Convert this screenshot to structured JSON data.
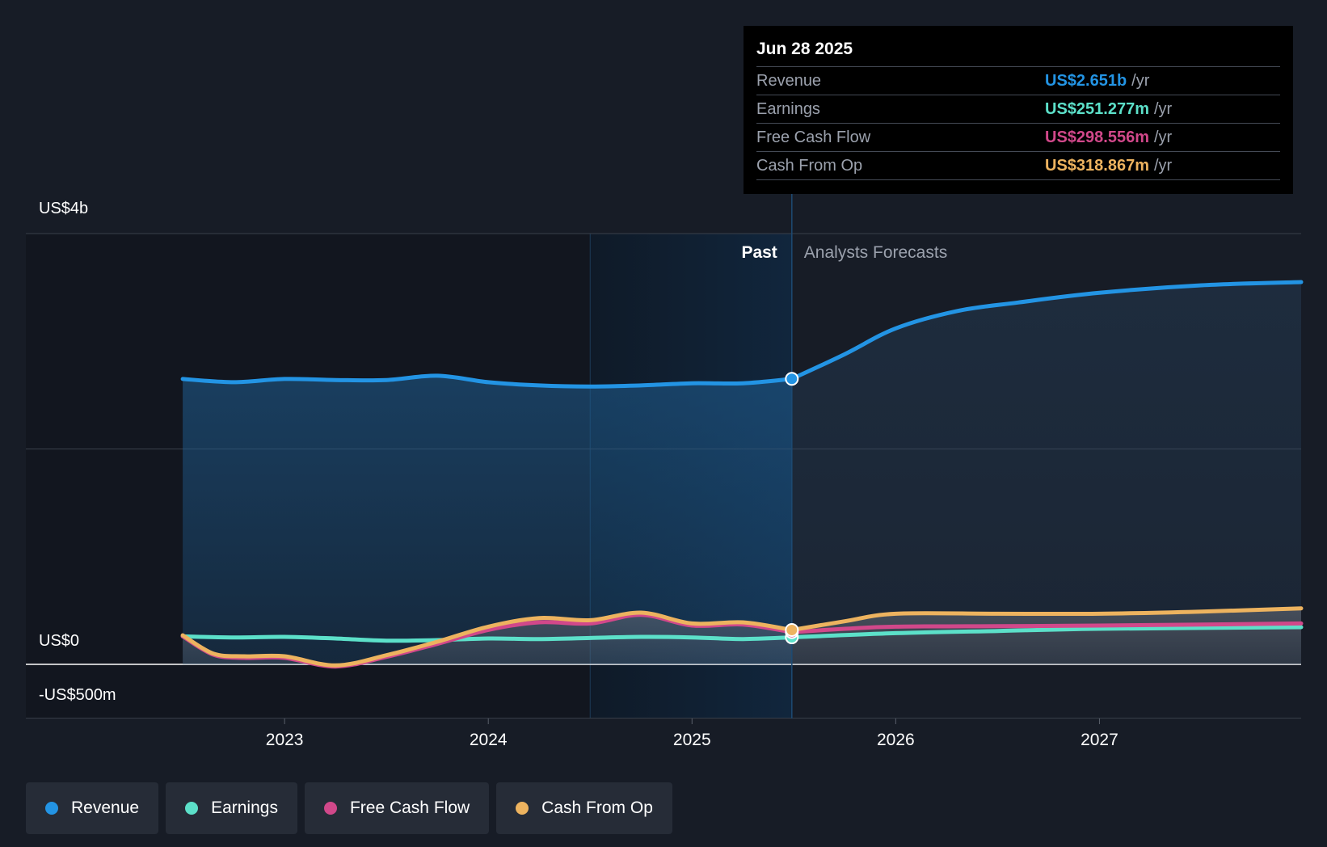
{
  "chart_data": {
    "type": "line",
    "y_axis_labels": [
      "US$4b",
      "US$0",
      "-US$500m"
    ],
    "ylim": [
      -500,
      4000
    ],
    "y_gridlines": [
      4000,
      2000,
      0,
      -500
    ],
    "x_ticks": [
      {
        "label": "2023",
        "x": 2023.0
      },
      {
        "label": "2024",
        "x": 2024.0
      },
      {
        "label": "2025",
        "x": 2025.0
      },
      {
        "label": "2026",
        "x": 2026.0
      },
      {
        "label": "2027",
        "x": 2027.0
      }
    ],
    "xlim": [
      2021.73,
      2027.99
    ],
    "highlight_start": 2024.5,
    "divider_x": 2025.49,
    "past_label": "Past",
    "forecast_label": "Analysts Forecasts",
    "series": [
      {
        "name": "Revenue",
        "color": "#2394e4",
        "past": [
          [
            2022.5,
            2650
          ],
          [
            2022.75,
            2620
          ],
          [
            2023.0,
            2650
          ],
          [
            2023.25,
            2640
          ],
          [
            2023.5,
            2640
          ],
          [
            2023.75,
            2680
          ],
          [
            2024.0,
            2620
          ],
          [
            2024.25,
            2590
          ],
          [
            2024.5,
            2580
          ],
          [
            2024.75,
            2590
          ],
          [
            2025.0,
            2610
          ],
          [
            2025.25,
            2610
          ],
          [
            2025.49,
            2651
          ]
        ],
        "forecast": [
          [
            2025.49,
            2651
          ],
          [
            2025.75,
            2880
          ],
          [
            2026.0,
            3120
          ],
          [
            2026.3,
            3280
          ],
          [
            2026.6,
            3360
          ],
          [
            2027.0,
            3450
          ],
          [
            2027.5,
            3520
          ],
          [
            2027.99,
            3550
          ]
        ]
      },
      {
        "name": "Earnings",
        "color": "#5ce0c9",
        "past": [
          [
            2022.5,
            260
          ],
          [
            2022.75,
            250
          ],
          [
            2023.0,
            255
          ],
          [
            2023.25,
            240
          ],
          [
            2023.5,
            220
          ],
          [
            2023.75,
            225
          ],
          [
            2024.0,
            240
          ],
          [
            2024.25,
            235
          ],
          [
            2024.5,
            245
          ],
          [
            2024.75,
            255
          ],
          [
            2025.0,
            250
          ],
          [
            2025.25,
            235
          ],
          [
            2025.49,
            251
          ]
        ],
        "forecast": [
          [
            2025.49,
            251
          ],
          [
            2026.0,
            290
          ],
          [
            2026.5,
            310
          ],
          [
            2027.0,
            330
          ],
          [
            2027.99,
            345
          ]
        ]
      },
      {
        "name": "Free Cash Flow",
        "color": "#d1488a",
        "past": [
          [
            2022.5,
            260
          ],
          [
            2022.65,
            90
          ],
          [
            2022.8,
            60
          ],
          [
            2023.0,
            60
          ],
          [
            2023.25,
            -20
          ],
          [
            2023.5,
            70
          ],
          [
            2023.75,
            190
          ],
          [
            2024.0,
            320
          ],
          [
            2024.25,
            390
          ],
          [
            2024.5,
            380
          ],
          [
            2024.75,
            460
          ],
          [
            2025.0,
            360
          ],
          [
            2025.25,
            370
          ],
          [
            2025.49,
            299
          ]
        ],
        "forecast": [
          [
            2025.49,
            299
          ],
          [
            2025.75,
            330
          ],
          [
            2026.0,
            350
          ],
          [
            2026.5,
            355
          ],
          [
            2027.0,
            360
          ],
          [
            2027.99,
            380
          ]
        ]
      },
      {
        "name": "Cash From Op",
        "color": "#edb35f",
        "past": [
          [
            2022.5,
            270
          ],
          [
            2022.65,
            100
          ],
          [
            2022.8,
            75
          ],
          [
            2023.0,
            75
          ],
          [
            2023.25,
            -10
          ],
          [
            2023.5,
            85
          ],
          [
            2023.75,
            210
          ],
          [
            2024.0,
            350
          ],
          [
            2024.25,
            430
          ],
          [
            2024.5,
            410
          ],
          [
            2024.75,
            480
          ],
          [
            2025.0,
            380
          ],
          [
            2025.25,
            390
          ],
          [
            2025.49,
            319
          ]
        ],
        "forecast": [
          [
            2025.49,
            319
          ],
          [
            2025.75,
            400
          ],
          [
            2026.0,
            470
          ],
          [
            2026.5,
            470
          ],
          [
            2027.0,
            470
          ],
          [
            2027.5,
            490
          ],
          [
            2027.99,
            520
          ]
        ]
      }
    ]
  },
  "tooltip": {
    "date": "Jun 28 2025",
    "unit": "/yr",
    "rows": [
      {
        "label": "Revenue",
        "value": "US$2.651b",
        "color": "#2394e4"
      },
      {
        "label": "Earnings",
        "value": "US$251.277m",
        "color": "#5ce0c9"
      },
      {
        "label": "Free Cash Flow",
        "value": "US$298.556m",
        "color": "#d1488a"
      },
      {
        "label": "Cash From Op",
        "value": "US$318.867m",
        "color": "#edb35f"
      }
    ]
  },
  "legend": [
    {
      "label": "Revenue",
      "color": "#2394e4"
    },
    {
      "label": "Earnings",
      "color": "#5ce0c9"
    },
    {
      "label": "Free Cash Flow",
      "color": "#d1488a"
    },
    {
      "label": "Cash From Op",
      "color": "#edb35f"
    }
  ]
}
